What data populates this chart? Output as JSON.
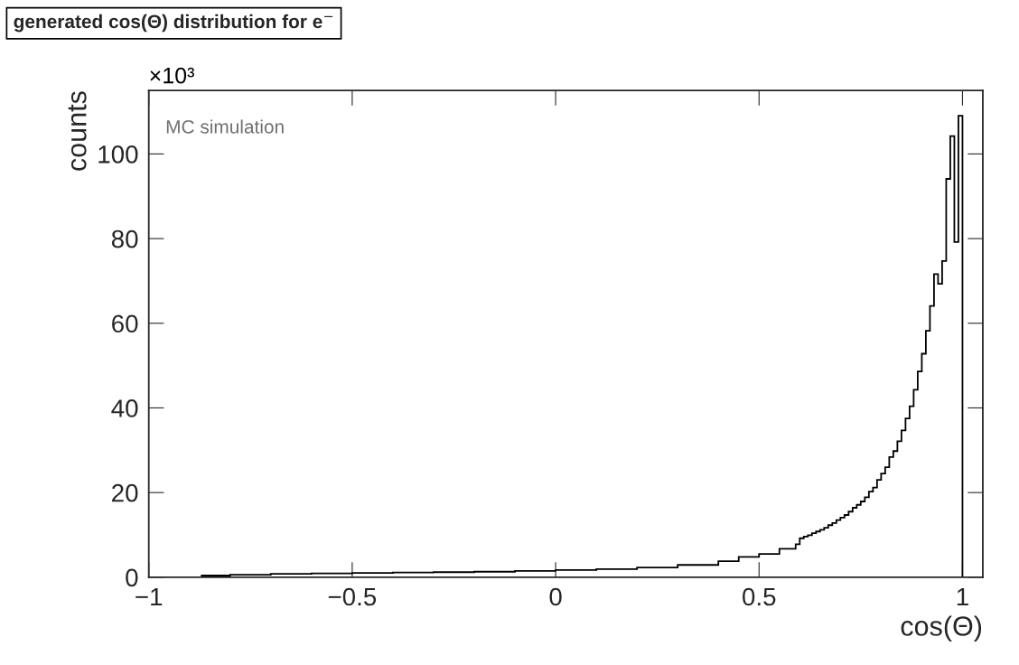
{
  "chart_data": {
    "type": "histogram",
    "title": "generated cos(Θ) distribution for e$^{−}$",
    "xlabel": "cos(Θ)",
    "ylabel": "counts",
    "annotations": [
      "×10³",
      "MC simulation"
    ],
    "bins": [
      -0.87,
      -0.8,
      -0.7,
      -0.6,
      -0.5,
      -0.4,
      -0.3,
      -0.2,
      -0.1,
      0,
      0.1,
      0.2,
      0.3,
      0.4,
      0.45,
      0.5,
      0.55,
      0.59,
      0.6,
      0.61,
      0.62,
      0.63,
      0.64,
      0.65,
      0.66,
      0.67,
      0.68,
      0.69,
      0.7,
      0.71,
      0.72,
      0.73,
      0.74,
      0.75,
      0.76,
      0.77,
      0.78,
      0.79,
      0.8,
      0.81,
      0.82,
      0.83,
      0.84,
      0.85,
      0.86,
      0.87,
      0.88,
      0.89,
      0.9,
      0.91,
      0.92,
      0.93,
      0.94,
      0.95,
      0.96,
      0.97,
      0.98,
      0.99,
      1.0
    ],
    "values": [
      0.4,
      0.6,
      0.8,
      0.9,
      1.0,
      1.1,
      1.2,
      1.3,
      1.5,
      1.7,
      1.9,
      2.3,
      2.9,
      3.8,
      4.8,
      5.5,
      6.7,
      7.8,
      9.2,
      9.6,
      9.9,
      10.4,
      10.8,
      11.2,
      11.7,
      12.3,
      12.8,
      13.5,
      14.1,
      14.7,
      15.5,
      16.4,
      17.1,
      17.9,
      18.9,
      20.2,
      21.2,
      23.0,
      24.5,
      26.0,
      28.4,
      29.8,
      32.1,
      34.7,
      37.5,
      40.4,
      44.3,
      48.6,
      52.8,
      58.2,
      64.1,
      71.6,
      69.3,
      74.7,
      94.1,
      104.2,
      79.2,
      109
    ],
    "color": "#000000",
    "xlim": [
      -1,
      1.05
    ],
    "ylim": [
      0,
      115
    ],
    "xticks": [
      -1,
      -0.5,
      0,
      0.5,
      1
    ],
    "yticks": [
      0,
      20,
      40,
      60,
      80,
      100
    ],
    "grid": false,
    "legend": false
  }
}
